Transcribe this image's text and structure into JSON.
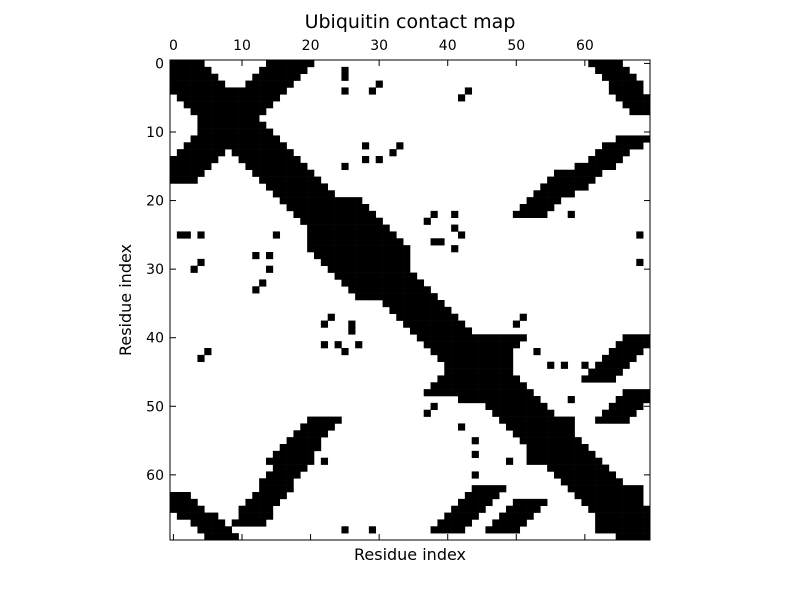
{
  "chart_data": {
    "type": "heatmap",
    "title": "Ubiquitin contact map",
    "xlabel": "Residue index",
    "ylabel": "Residue index",
    "n": 70,
    "x_ticks": [
      0,
      10,
      20,
      30,
      40,
      50,
      60
    ],
    "y_ticks": [
      0,
      10,
      20,
      30,
      40,
      50,
      60
    ],
    "x_tick_position": "top",
    "xlim": [
      -0.5,
      69.5
    ],
    "ylim": [
      69.5,
      -0.5
    ],
    "colormap": {
      "contact": "#000000",
      "no_contact": "#ffffff"
    },
    "grid": false,
    "contact_bands": [
      {
        "name": "main-diagonal",
        "from": [
          0,
          0
        ],
        "to": [
          69,
          69
        ],
        "width": 4
      },
      {
        "name": "strand-1-2-antiparallel",
        "from": [
          0,
          17
        ],
        "to": [
          17,
          0
        ],
        "width": 3
      },
      {
        "name": "strand-1-5-parallel",
        "from": [
          0,
          63
        ],
        "to": [
          7,
          69
        ],
        "width": 2
      },
      {
        "name": "strand-1-5-parallel-mirror",
        "from": [
          63,
          0
        ],
        "to": [
          69,
          7
        ],
        "width": 2
      },
      {
        "name": "strand-2-4",
        "from": [
          11,
          67
        ],
        "to": [
          19,
          56
        ],
        "width": 2
      },
      {
        "name": "strand-2-4-mirror",
        "from": [
          67,
          11
        ],
        "to": [
          56,
          19
        ],
        "width": 2
      },
      {
        "name": "strand-3-5",
        "from": [
          40,
          68
        ],
        "to": [
          46,
          62
        ],
        "width": 2
      },
      {
        "name": "strand-3-5-mirror",
        "from": [
          68,
          40
        ],
        "to": [
          62,
          46
        ],
        "width": 2
      },
      {
        "name": "helix-strand-contact",
        "from": [
          22,
          52
        ],
        "to": [
          16,
          58
        ],
        "width": 2
      },
      {
        "name": "helix-strand-contact-mirror",
        "from": [
          52,
          22
        ],
        "to": [
          58,
          16
        ],
        "width": 2
      },
      {
        "name": "turn-40-48",
        "from": [
          40,
          48
        ],
        "to": [
          44,
          44
        ],
        "width": 3
      },
      {
        "name": "turn-40-48-mirror",
        "from": [
          48,
          40
        ],
        "to": [
          44,
          44
        ],
        "width": 3
      },
      {
        "name": "strand-4-5",
        "from": [
          48,
          68
        ],
        "to": [
          52,
          64
        ],
        "width": 2
      },
      {
        "name": "strand-4-5-mirror",
        "from": [
          68,
          48
        ],
        "to": [
          64,
          52
        ],
        "width": 2
      }
    ],
    "contact_blocks": [
      {
        "rows": [
          4,
          11
        ],
        "cols": [
          4,
          11
        ]
      },
      {
        "rows": [
          20,
          34
        ],
        "cols": [
          20,
          34
        ]
      },
      {
        "rows": [
          42,
          49
        ],
        "cols": [
          42,
          49
        ]
      },
      {
        "rows": [
          52,
          58
        ],
        "cols": [
          52,
          58
        ]
      },
      {
        "rows": [
          62,
          68
        ],
        "cols": [
          62,
          68
        ]
      }
    ],
    "contact_cells": [
      [
        2,
        25
      ],
      [
        25,
        2
      ],
      [
        4,
        25
      ],
      [
        25,
        4
      ],
      [
        4,
        29
      ],
      [
        29,
        4
      ],
      [
        1,
        25
      ],
      [
        25,
        1
      ],
      [
        3,
        30
      ],
      [
        30,
        3
      ],
      [
        5,
        42
      ],
      [
        42,
        5
      ],
      [
        4,
        43
      ],
      [
        43,
        4
      ],
      [
        13,
        32
      ],
      [
        32,
        13
      ],
      [
        14,
        28
      ],
      [
        28,
        14
      ],
      [
        15,
        25
      ],
      [
        25,
        15
      ],
      [
        22,
        38
      ],
      [
        38,
        22
      ],
      [
        22,
        41
      ],
      [
        41,
        22
      ],
      [
        25,
        42
      ],
      [
        42,
        25
      ],
      [
        26,
        38
      ],
      [
        38,
        26
      ],
      [
        27,
        41
      ],
      [
        41,
        27
      ],
      [
        28,
        12
      ],
      [
        12,
        28
      ],
      [
        30,
        14
      ],
      [
        14,
        30
      ],
      [
        33,
        12
      ],
      [
        12,
        33
      ],
      [
        37,
        23
      ],
      [
        23,
        37
      ],
      [
        39,
        26
      ],
      [
        26,
        39
      ],
      [
        41,
        24
      ],
      [
        24,
        41
      ],
      [
        37,
        51
      ],
      [
        51,
        37
      ],
      [
        42,
        53
      ],
      [
        53,
        42
      ],
      [
        44,
        60
      ],
      [
        60,
        44
      ],
      [
        44,
        57
      ],
      [
        57,
        44
      ],
      [
        50,
        38
      ],
      [
        38,
        50
      ],
      [
        55,
        44
      ],
      [
        44,
        55
      ],
      [
        58,
        49
      ],
      [
        49,
        58
      ],
      [
        14,
        63
      ],
      [
        63,
        14
      ],
      [
        13,
        66
      ],
      [
        66,
        13
      ],
      [
        22,
        58
      ],
      [
        58,
        22
      ],
      [
        25,
        68
      ],
      [
        68,
        25
      ],
      [
        29,
        68
      ],
      [
        68,
        29
      ],
      [
        40,
        67
      ],
      [
        67,
        40
      ]
    ]
  }
}
